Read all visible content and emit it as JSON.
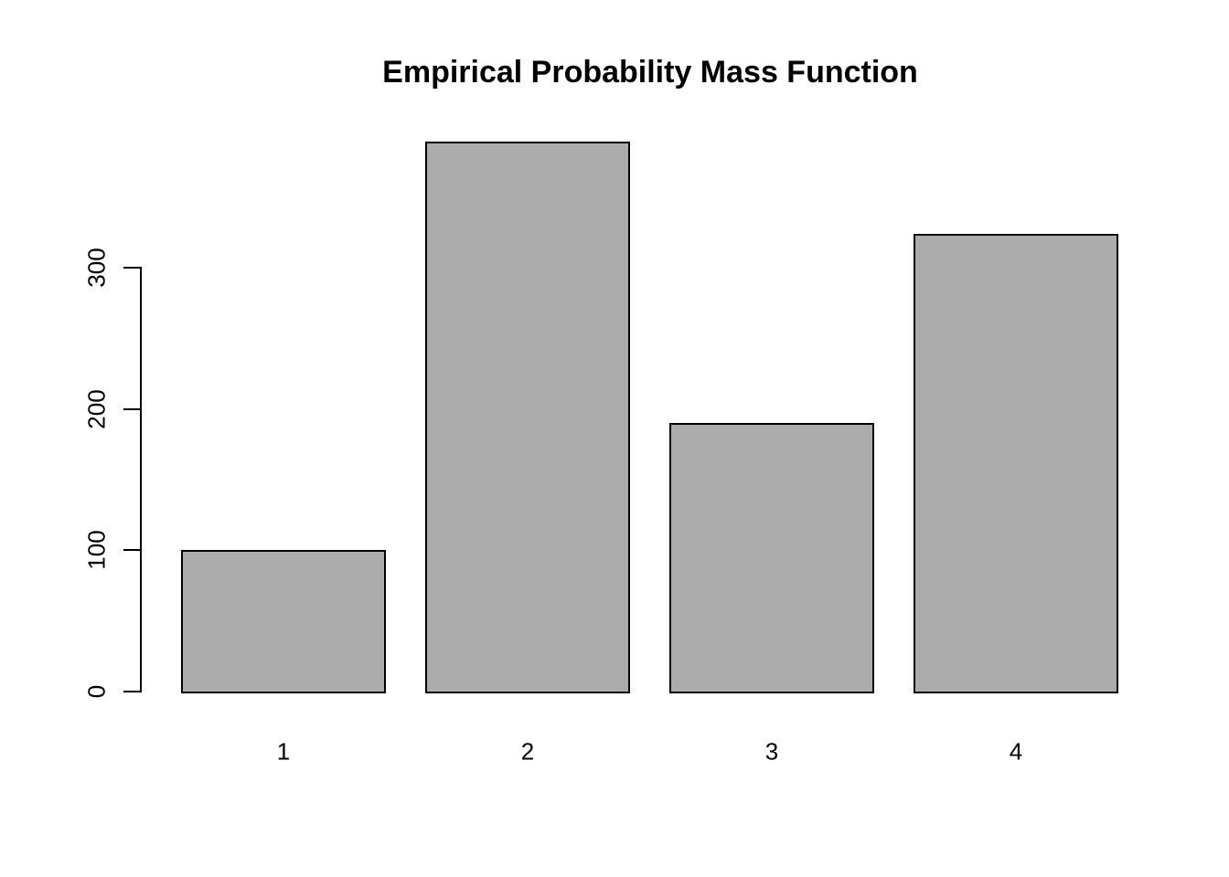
{
  "chart_data": {
    "type": "bar",
    "title": "Empirical Probability Mass Function",
    "categories": [
      "1",
      "2",
      "3",
      "4"
    ],
    "values": [
      100,
      389,
      190,
      324
    ],
    "xlabel": "",
    "ylabel": "",
    "ytick_labels": [
      "0",
      "100",
      "200",
      "300"
    ],
    "yticks": [
      0,
      100,
      200,
      300
    ],
    "ylim": [
      0,
      390
    ],
    "legend": "none",
    "grid": false,
    "colors": {
      "bar_fill": "#acacac",
      "bar_border": "#000000",
      "axis": "#000000",
      "text": "#000000",
      "background": "#ffffff"
    }
  }
}
